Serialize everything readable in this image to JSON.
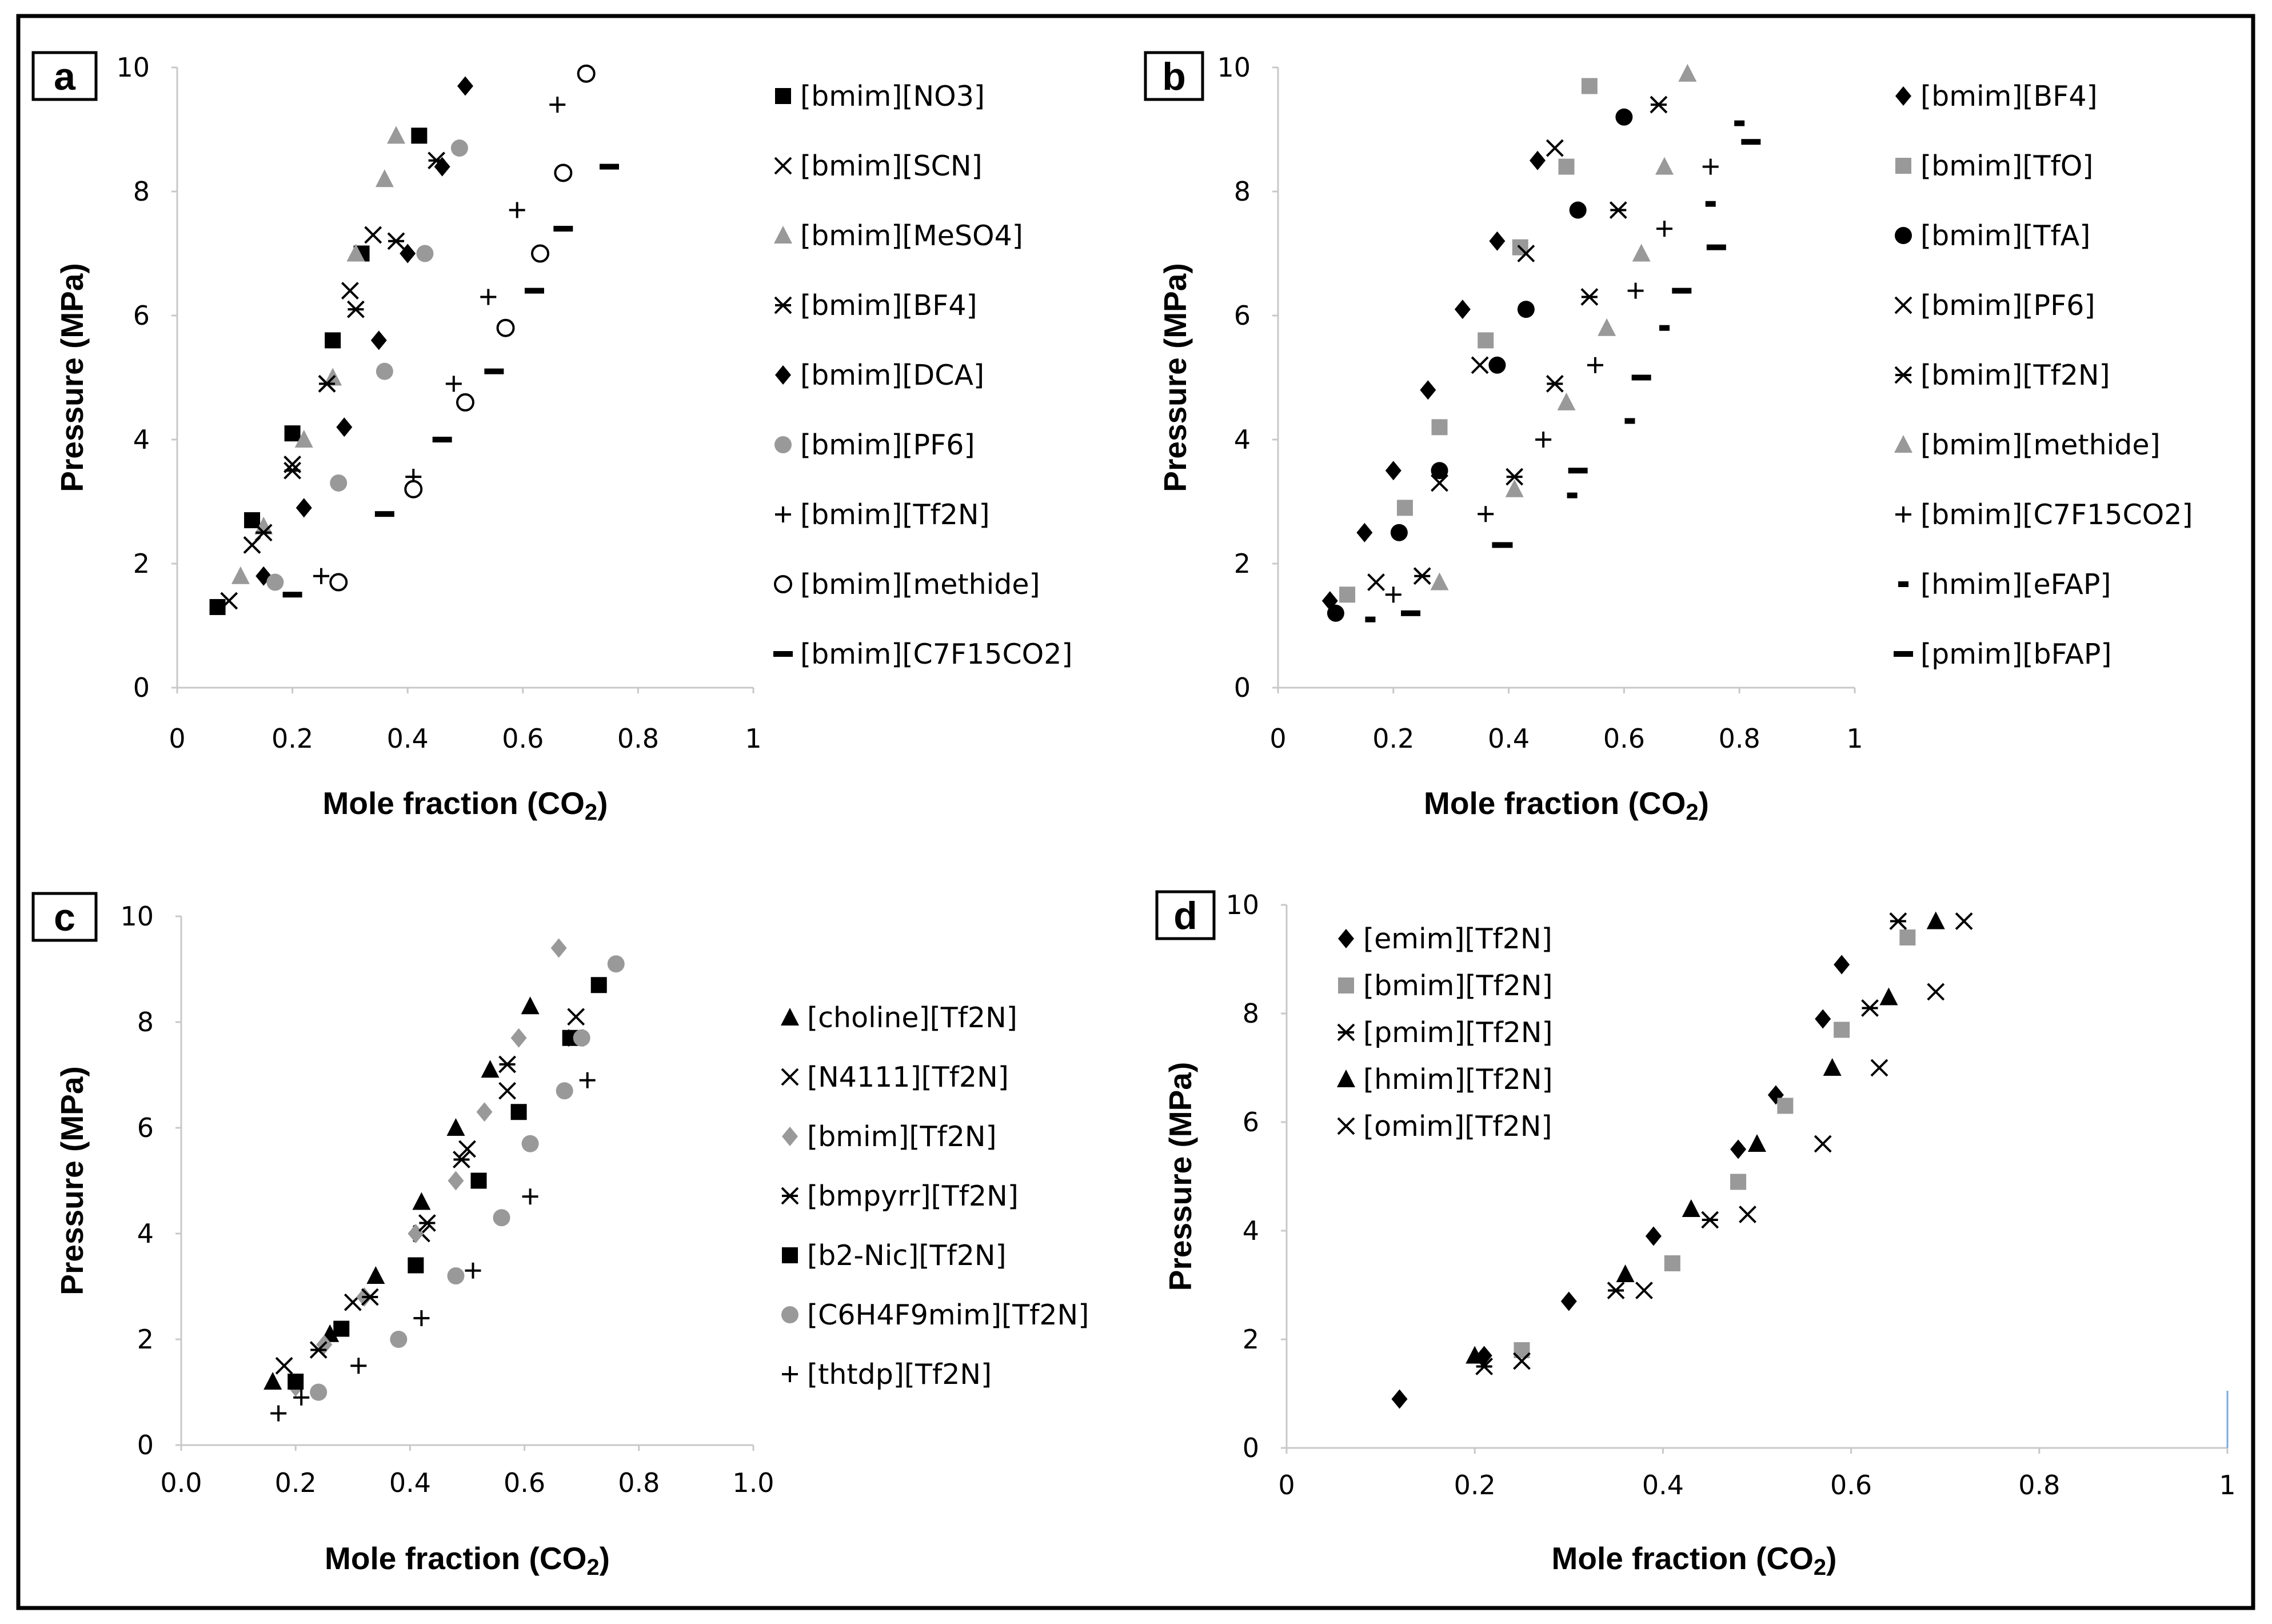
{
  "panel_labels": [
    "a",
    "b",
    "c",
    "d"
  ],
  "chart_data": [
    {
      "type": "scatter",
      "title": "a",
      "xlabel": "Mole fraction (CO",
      "xlabel_sub": "2",
      "xlabel_end": ")",
      "ylabel": "Pressure (MPa)",
      "xlim": [
        0,
        1
      ],
      "ylim": [
        0,
        10
      ],
      "xticks": [
        "0",
        "0.2",
        "0.4",
        "0.6",
        "0.8",
        "1"
      ],
      "yticks": [
        "0",
        "2",
        "4",
        "6",
        "8",
        "10"
      ],
      "series": [
        {
          "name": "[bmim][NO3]",
          "marker": "square",
          "color": "#000000",
          "x": [
            0.07,
            0.13,
            0.2,
            0.27,
            0.32,
            0.42
          ],
          "y": [
            1.3,
            2.7,
            4.1,
            5.6,
            7.0,
            8.9
          ]
        },
        {
          "name": "[bmim][SCN]",
          "marker": "x",
          "color": "#000000",
          "x": [
            0.09,
            0.13,
            0.2,
            0.26,
            0.3,
            0.34
          ],
          "y": [
            1.4,
            2.3,
            3.6,
            4.9,
            6.4,
            7.3
          ]
        },
        {
          "name": "[bmim][MeSO4]",
          "marker": "triangle",
          "color": "#999999",
          "x": [
            0.11,
            0.15,
            0.22,
            0.27,
            0.31,
            0.36,
            0.38
          ],
          "y": [
            1.8,
            2.6,
            4.0,
            5.0,
            7.0,
            8.2,
            8.9
          ]
        },
        {
          "name": "[bmim][BF4]",
          "marker": "asterisk",
          "color": "#000000",
          "x": [
            0.15,
            0.2,
            0.26,
            0.31,
            0.38,
            0.45
          ],
          "y": [
            2.5,
            3.5,
            4.9,
            6.1,
            7.2,
            8.5
          ]
        },
        {
          "name": "[bmim][DCA]",
          "marker": "diamond",
          "color": "#000000",
          "x": [
            0.15,
            0.22,
            0.29,
            0.35,
            0.4,
            0.46,
            0.5
          ],
          "y": [
            1.8,
            2.9,
            4.2,
            5.6,
            7.0,
            8.4,
            9.7
          ]
        },
        {
          "name": "[bmim][PF6]",
          "marker": "circle",
          "color": "#999999",
          "x": [
            0.17,
            0.28,
            0.36,
            0.43,
            0.49
          ],
          "y": [
            1.7,
            3.3,
            5.1,
            7.0,
            8.7
          ]
        },
        {
          "name": "[bmim][Tf2N]",
          "marker": "plus",
          "color": "#000000",
          "x": [
            0.25,
            0.41,
            0.48,
            0.54,
            0.59,
            0.66
          ],
          "y": [
            1.8,
            3.4,
            4.9,
            6.3,
            7.7,
            9.4
          ]
        },
        {
          "name": "[bmim][methide]",
          "marker": "circle_open",
          "color": "#000000",
          "x": [
            0.28,
            0.41,
            0.5,
            0.57,
            0.63,
            0.67,
            0.71
          ],
          "y": [
            1.7,
            3.2,
            4.6,
            5.8,
            7.0,
            8.3,
            9.9
          ]
        },
        {
          "name": "[bmim][C7F15CO2]",
          "marker": "dash",
          "color": "#000000",
          "x": [
            0.2,
            0.36,
            0.46,
            0.55,
            0.62,
            0.67,
            0.75
          ],
          "y": [
            1.5,
            2.8,
            4.0,
            5.1,
            6.4,
            7.4,
            8.4
          ]
        }
      ]
    },
    {
      "type": "scatter",
      "title": "b",
      "xlabel": "Mole fraction (CO",
      "xlabel_sub": "2",
      "xlabel_end": ")",
      "ylabel": "Pressure (MPa)",
      "xlim": [
        0,
        1
      ],
      "ylim": [
        0,
        10
      ],
      "xticks": [
        "0",
        "0.2",
        "0.4",
        "0.6",
        "0.8",
        "1"
      ],
      "yticks": [
        "0",
        "2",
        "4",
        "6",
        "8",
        "10"
      ],
      "series": [
        {
          "name": "[bmim][BF4]",
          "marker": "diamond",
          "color": "#000000",
          "x": [
            0.09,
            0.15,
            0.2,
            0.26,
            0.32,
            0.38,
            0.45
          ],
          "y": [
            1.4,
            2.5,
            3.5,
            4.8,
            6.1,
            7.2,
            8.5
          ]
        },
        {
          "name": "[bmim][TfO]",
          "marker": "square",
          "color": "#999999",
          "x": [
            0.12,
            0.22,
            0.28,
            0.36,
            0.42,
            0.5,
            0.54
          ],
          "y": [
            1.5,
            2.9,
            4.2,
            5.6,
            7.1,
            8.4,
            9.7
          ]
        },
        {
          "name": "[bmim][TfA]",
          "marker": "circle",
          "color": "#000000",
          "x": [
            0.1,
            0.21,
            0.28,
            0.38,
            0.43,
            0.52,
            0.6
          ],
          "y": [
            1.2,
            2.5,
            3.5,
            5.2,
            6.1,
            7.7,
            9.2
          ]
        },
        {
          "name": "[bmim][PF6]",
          "marker": "x",
          "color": "#000000",
          "x": [
            0.17,
            0.28,
            0.35,
            0.43,
            0.48
          ],
          "y": [
            1.7,
            3.3,
            5.2,
            7.0,
            8.7
          ]
        },
        {
          "name": "[bmim][Tf2N]",
          "marker": "asterisk",
          "color": "#000000",
          "x": [
            0.25,
            0.41,
            0.48,
            0.54,
            0.59,
            0.66
          ],
          "y": [
            1.8,
            3.4,
            4.9,
            6.3,
            7.7,
            9.4
          ]
        },
        {
          "name": "[bmim][methide]",
          "marker": "triangle",
          "color": "#999999",
          "x": [
            0.28,
            0.41,
            0.5,
            0.57,
            0.63,
            0.67,
            0.71
          ],
          "y": [
            1.7,
            3.2,
            4.6,
            5.8,
            7.0,
            8.4,
            9.9
          ]
        },
        {
          "name": "[bmim][C7F15CO2]",
          "marker": "plus",
          "color": "#000000",
          "x": [
            0.2,
            0.36,
            0.46,
            0.55,
            0.62,
            0.67,
            0.75
          ],
          "y": [
            1.5,
            2.8,
            4.0,
            5.2,
            6.4,
            7.4,
            8.4
          ]
        },
        {
          "name": "[hmim][eFAP]",
          "marker": "short_dash",
          "color": "#000000",
          "x": [
            0.16,
            0.38,
            0.51,
            0.61,
            0.67,
            0.75,
            0.8
          ],
          "y": [
            1.1,
            2.3,
            3.1,
            4.3,
            5.8,
            7.8,
            9.1
          ]
        },
        {
          "name": "[pmim][bFAP]",
          "marker": "dash",
          "color": "#000000",
          "x": [
            0.23,
            0.39,
            0.52,
            0.63,
            0.7,
            0.76,
            0.82
          ],
          "y": [
            1.2,
            2.3,
            3.5,
            5.0,
            6.4,
            7.1,
            8.8
          ]
        }
      ]
    },
    {
      "type": "scatter",
      "title": "c",
      "xlabel": "Mole fraction (CO",
      "xlabel_sub": "2",
      "xlabel_end": ")",
      "ylabel": "Pressure (MPa)",
      "xlim": [
        0,
        1
      ],
      "ylim": [
        0,
        10
      ],
      "xticks": [
        "0.0",
        "0.2",
        "0.4",
        "0.6",
        "0.8",
        "1.0"
      ],
      "yticks": [
        "0",
        "2",
        "4",
        "6",
        "8",
        "10"
      ],
      "series": [
        {
          "name": "[choline][Tf2N]",
          "marker": "triangle",
          "color": "#000000",
          "x": [
            0.16,
            0.26,
            0.34,
            0.42,
            0.48,
            0.54,
            0.61
          ],
          "y": [
            1.2,
            2.1,
            3.2,
            4.6,
            6.0,
            7.1,
            8.3
          ]
        },
        {
          "name": "[N4111][Tf2N]",
          "marker": "x",
          "color": "#000000",
          "x": [
            0.18,
            0.3,
            0.42,
            0.5,
            0.57,
            0.69
          ],
          "y": [
            1.5,
            2.7,
            4.0,
            5.6,
            6.7,
            8.1
          ]
        },
        {
          "name": "[bmim][Tf2N]",
          "marker": "diamond",
          "color": "#999999",
          "x": [
            0.2,
            0.25,
            0.32,
            0.41,
            0.48,
            0.53,
            0.59,
            0.66
          ],
          "y": [
            1.1,
            1.9,
            2.8,
            4.0,
            5.0,
            6.3,
            7.7,
            9.4
          ]
        },
        {
          "name": "[bmpyrr][Tf2N]",
          "marker": "asterisk",
          "color": "#000000",
          "x": [
            0.24,
            0.33,
            0.43,
            0.49,
            0.57,
            0.69
          ],
          "y": [
            1.8,
            2.8,
            4.2,
            5.4,
            7.2,
            7.7
          ]
        },
        {
          "name": "[b2-Nic][Tf2N]",
          "marker": "square",
          "color": "#000000",
          "x": [
            0.2,
            0.28,
            0.41,
            0.52,
            0.59,
            0.68,
            0.73
          ],
          "y": [
            1.2,
            2.2,
            3.4,
            5.0,
            6.3,
            7.7,
            8.7
          ]
        },
        {
          "name": "[C6H4F9mim][Tf2N]",
          "marker": "circle",
          "color": "#999999",
          "x": [
            0.24,
            0.38,
            0.48,
            0.56,
            0.61,
            0.67,
            0.7,
            0.76
          ],
          "y": [
            1.0,
            2.0,
            3.2,
            4.3,
            5.7,
            6.7,
            7.7,
            9.1
          ]
        },
        {
          "name": "[thtdp][Tf2N]",
          "marker": "plus",
          "color": "#000000",
          "x": [
            0.17,
            0.21,
            0.31,
            0.42,
            0.51,
            0.61,
            0.71
          ],
          "y": [
            0.6,
            0.9,
            1.5,
            2.4,
            3.3,
            4.7,
            6.9
          ]
        }
      ]
    },
    {
      "type": "scatter",
      "title": "d",
      "xlabel": "Mole fraction (CO",
      "xlabel_sub": "2",
      "xlabel_end": ")",
      "ylabel": "Pressure (MPa)",
      "xlim": [
        0,
        1
      ],
      "ylim": [
        0,
        10
      ],
      "xticks": [
        "0",
        "0.2",
        "0.4",
        "0.6",
        "0.8",
        "1"
      ],
      "yticks": [
        "0",
        "2",
        "4",
        "6",
        "8",
        "10"
      ],
      "series": [
        {
          "name": "[emim][Tf2N]",
          "marker": "diamond",
          "color": "#000000",
          "x": [
            0.12,
            0.21,
            0.3,
            0.39,
            0.48,
            0.52,
            0.57,
            0.59
          ],
          "y": [
            0.9,
            1.7,
            2.7,
            3.9,
            5.5,
            6.5,
            7.9,
            8.9
          ]
        },
        {
          "name": "[bmim][Tf2N]",
          "marker": "square",
          "color": "#999999",
          "x": [
            0.25,
            0.41,
            0.48,
            0.53,
            0.59,
            0.66
          ],
          "y": [
            1.8,
            3.4,
            4.9,
            6.3,
            7.7,
            9.4
          ]
        },
        {
          "name": "[pmim][Tf2N]",
          "marker": "asterisk",
          "color": "#000000",
          "x": [
            0.21,
            0.35,
            0.45,
            0.62,
            0.65
          ],
          "y": [
            1.5,
            2.9,
            4.2,
            8.1,
            9.7
          ]
        },
        {
          "name": "[hmim][Tf2N]",
          "marker": "triangle",
          "color": "#000000",
          "x": [
            0.2,
            0.36,
            0.43,
            0.5,
            0.58,
            0.64,
            0.69
          ],
          "y": [
            1.7,
            3.2,
            4.4,
            5.6,
            7.0,
            8.3,
            9.7
          ]
        },
        {
          "name": "[omim][Tf2N]",
          "marker": "x",
          "color": "#000000",
          "x": [
            0.25,
            0.38,
            0.49,
            0.57,
            0.63,
            0.69,
            0.72
          ],
          "y": [
            1.6,
            2.9,
            4.3,
            5.6,
            7.0,
            8.4,
            9.7
          ]
        }
      ]
    }
  ]
}
